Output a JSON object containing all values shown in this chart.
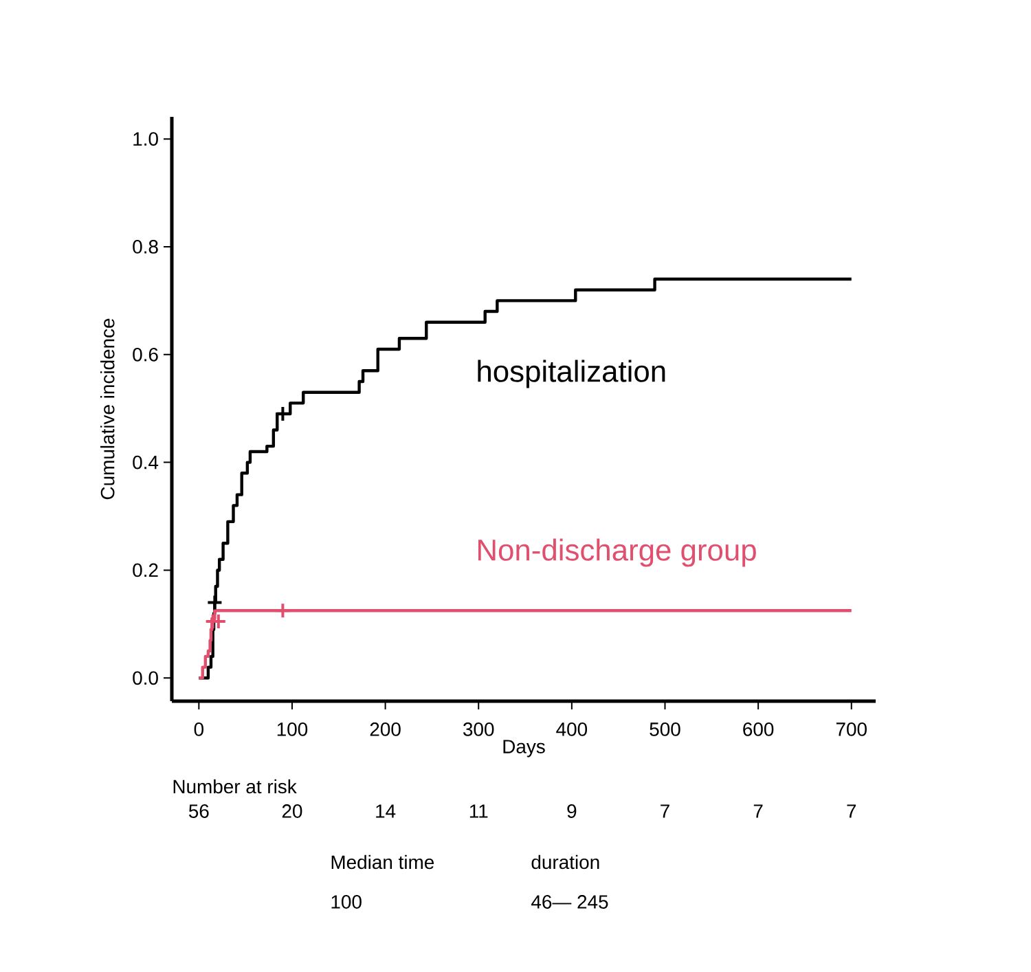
{
  "chart_data": {
    "type": "step",
    "xlabel": "Days",
    "ylabel": "Cumulative incidence",
    "xlim": [
      -29,
      726
    ],
    "ylim": [
      -0.043,
      1.041
    ],
    "xticks": [
      0,
      100,
      200,
      300,
      400,
      500,
      600,
      700
    ],
    "yticks": [
      {
        "value": 0,
        "label": "0.0"
      },
      {
        "value": 0.2,
        "label": "0.2"
      },
      {
        "value": 0.4,
        "label": "0.4"
      },
      {
        "value": 0.6,
        "label": "0.6"
      },
      {
        "value": 0.8,
        "label": "0.8"
      },
      {
        "value": 1.0,
        "label": "1.0"
      }
    ],
    "series": [
      {
        "name": "hospitalization",
        "color": "#000000",
        "x": [
          0,
          10,
          13,
          15,
          16,
          17,
          18,
          20,
          22,
          26,
          31,
          37,
          41,
          46,
          52,
          55,
          73,
          80,
          84,
          98,
          112,
          172,
          176,
          192,
          215,
          244,
          307,
          320,
          404,
          489,
          700
        ],
        "values": [
          0,
          0.02,
          0.04,
          0.09,
          0.12,
          0.14,
          0.17,
          0.2,
          0.22,
          0.25,
          0.29,
          0.32,
          0.34,
          0.38,
          0.4,
          0.42,
          0.43,
          0.46,
          0.49,
          0.51,
          0.53,
          0.55,
          0.57,
          0.61,
          0.63,
          0.66,
          0.68,
          0.7,
          0.72,
          0.74,
          0.74
        ]
      },
      {
        "name": "Non-discharge group",
        "color": "#e0506e",
        "x": [
          0,
          4,
          7,
          10,
          12,
          13,
          14,
          17,
          700
        ],
        "values": [
          0,
          0.02,
          0.04,
          0.05,
          0.07,
          0.09,
          0.11,
          0.125,
          0.125
        ]
      },
      {
        "type": "scatter",
        "marker": "cross",
        "color": "#000000",
        "x": [
          17,
          90
        ],
        "values": [
          0.14,
          0.49
        ]
      },
      {
        "type": "scatter",
        "marker": "cross",
        "color": "#e0506e",
        "x": [
          15,
          21,
          90
        ],
        "values": [
          0.105,
          0.105,
          0.125
        ]
      }
    ],
    "annotations": [
      "Number at risk",
      "56",
      "20",
      "14",
      "11",
      "9",
      "7",
      "7",
      "7",
      "Median time",
      "duration",
      "100",
      "46— 245"
    ]
  }
}
